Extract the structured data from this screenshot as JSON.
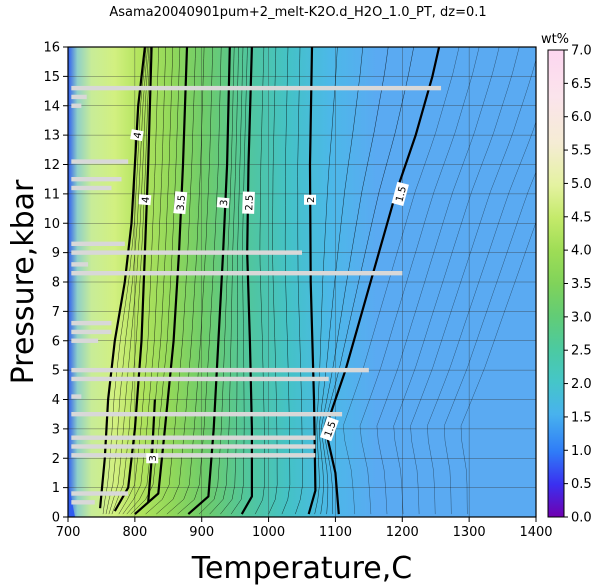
{
  "chart_data": {
    "type": "heatmap",
    "title": "Asama20040901pum+2_melt-K2O.d_H2O_1.0_PT, dz=0.1",
    "xlabel": "Temperature,C",
    "ylabel": "Pressure,kbar",
    "xlim": [
      700,
      1400
    ],
    "ylim": [
      0,
      16
    ],
    "x_ticks": [
      700,
      800,
      900,
      1000,
      1100,
      1200,
      1300,
      1400
    ],
    "y_ticks": [
      0,
      1,
      2,
      3,
      4,
      5,
      6,
      7,
      8,
      9,
      10,
      11,
      12,
      13,
      14,
      15,
      16
    ],
    "grid": true,
    "colorbar": {
      "label": "wt%",
      "range": [
        0.0,
        7.0
      ],
      "ticks": [
        "0.0",
        "0.5",
        "1.0",
        "1.5",
        "2.0",
        "2.5",
        "3.0",
        "3.5",
        "4.0",
        "4.5",
        "5.0",
        "5.5",
        "6.0",
        "6.5",
        "7.0"
      ]
    },
    "major_contours": [
      {
        "level": "4",
        "points": [
          [
            748,
            0.3
          ],
          [
            755,
            2
          ],
          [
            760,
            4
          ],
          [
            770,
            6
          ],
          [
            785,
            8
          ],
          [
            795,
            10
          ],
          [
            800,
            12
          ],
          [
            805,
            14
          ],
          [
            815,
            16
          ]
        ]
      },
      {
        "level": "4",
        "points": [
          [
            770,
            0.2
          ],
          [
            790,
            1
          ],
          [
            800,
            3
          ],
          [
            810,
            6
          ],
          [
            815,
            9
          ],
          [
            820,
            12
          ],
          [
            825,
            16
          ]
        ]
      },
      {
        "level": "3.5",
        "points": [
          [
            800,
            0.1
          ],
          [
            835,
            0.8
          ],
          [
            845,
            3
          ],
          [
            858,
            6
          ],
          [
            866,
            9
          ],
          [
            872,
            12
          ],
          [
            878,
            16
          ]
        ]
      },
      {
        "level": "3",
        "points": [
          [
            880,
            0.1
          ],
          [
            910,
            0.7
          ],
          [
            918,
            3
          ],
          [
            925,
            6
          ],
          [
            932,
            9
          ],
          [
            938,
            12
          ],
          [
            942,
            16
          ]
        ]
      },
      {
        "level": "3",
        "points": [
          [
            820,
            0.5
          ],
          [
            826,
            2.2
          ],
          [
            830,
            4
          ]
        ]
      },
      {
        "level": "2.5",
        "points": [
          [
            960,
            0.1
          ],
          [
            975,
            0.7
          ],
          [
            975,
            3
          ],
          [
            972,
            6
          ],
          [
            968,
            9
          ],
          [
            970,
            12
          ],
          [
            975,
            16
          ]
        ]
      },
      {
        "level": "2",
        "points": [
          [
            1060,
            0.1
          ],
          [
            1070,
            0.9
          ],
          [
            1068,
            4
          ],
          [
            1063,
            8
          ],
          [
            1062,
            12
          ],
          [
            1065,
            16
          ]
        ]
      },
      {
        "level": "1.5",
        "points": [
          [
            1105,
            0.1
          ],
          [
            1100,
            1.5
          ],
          [
            1085,
            3
          ],
          [
            1115,
            5
          ],
          [
            1140,
            7
          ],
          [
            1165,
            9
          ],
          [
            1190,
            11
          ],
          [
            1220,
            13
          ],
          [
            1245,
            15
          ],
          [
            1255,
            16
          ]
        ]
      }
    ],
    "contour_labels": [
      {
        "text": "4",
        "x": 803,
        "y": 13.0,
        "rotate": 80
      },
      {
        "text": "4",
        "x": 815,
        "y": 10.8,
        "rotate": 85
      },
      {
        "text": "3.5",
        "x": 868,
        "y": 10.7,
        "rotate": 85
      },
      {
        "text": "3",
        "x": 932,
        "y": 10.7,
        "rotate": 85
      },
      {
        "text": "2.5",
        "x": 970,
        "y": 10.7,
        "rotate": 88
      },
      {
        "text": "2",
        "x": 1062,
        "y": 10.8,
        "rotate": 90
      },
      {
        "text": "1.5",
        "x": 1197,
        "y": 11.0,
        "rotate": 75
      },
      {
        "text": "1.5",
        "x": 1091,
        "y": 3.0,
        "rotate": 70
      },
      {
        "text": "3",
        "x": 826,
        "y": 2.0,
        "rotate": 90
      }
    ],
    "gaps": [
      {
        "y": 14.6,
        "x0": 705,
        "x1": 1258
      },
      {
        "y": 14.3,
        "x0": 705,
        "x1": 728
      },
      {
        "y": 14.0,
        "x0": 705,
        "x1": 720
      },
      {
        "y": 12.1,
        "x0": 705,
        "x1": 790
      },
      {
        "y": 11.5,
        "x0": 705,
        "x1": 780
      },
      {
        "y": 11.2,
        "x0": 705,
        "x1": 765
      },
      {
        "y": 9.3,
        "x0": 705,
        "x1": 785
      },
      {
        "y": 9.0,
        "x0": 705,
        "x1": 1050
      },
      {
        "y": 8.6,
        "x0": 705,
        "x1": 730
      },
      {
        "y": 8.3,
        "x0": 705,
        "x1": 1200
      },
      {
        "y": 6.6,
        "x0": 705,
        "x1": 765
      },
      {
        "y": 6.3,
        "x0": 705,
        "x1": 765
      },
      {
        "y": 6.0,
        "x0": 705,
        "x1": 745
      },
      {
        "y": 5.0,
        "x0": 705,
        "x1": 1150
      },
      {
        "y": 4.7,
        "x0": 705,
        "x1": 1090
      },
      {
        "y": 4.1,
        "x0": 705,
        "x1": 720
      },
      {
        "y": 3.5,
        "x0": 705,
        "x1": 1110
      },
      {
        "y": 2.7,
        "x0": 705,
        "x1": 1070
      },
      {
        "y": 2.4,
        "x0": 705,
        "x1": 1070
      },
      {
        "y": 2.1,
        "x0": 705,
        "x1": 1070
      },
      {
        "y": 0.8,
        "x0": 705,
        "x1": 790
      },
      {
        "y": 0.5,
        "x0": 705,
        "x1": 740
      }
    ]
  }
}
